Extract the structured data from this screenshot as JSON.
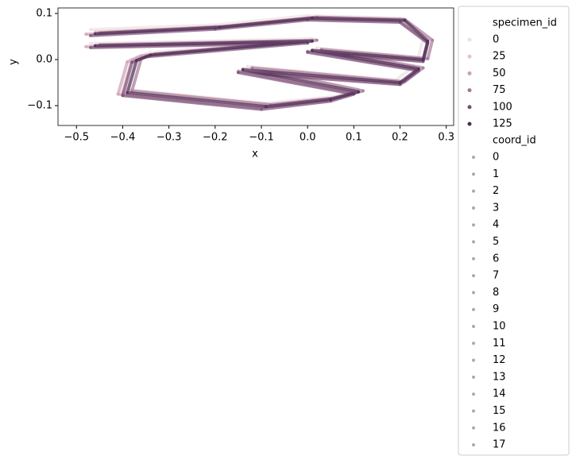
{
  "chart_data": {
    "type": "line",
    "x_label": "x",
    "y_label": "y",
    "xlim": [
      -0.54,
      0.316
    ],
    "ylim": [
      -0.143,
      0.112
    ],
    "xticks": [
      {
        "value": -0.5,
        "label": "−0.5"
      },
      {
        "value": -0.4,
        "label": "−0.4"
      },
      {
        "value": -0.3,
        "label": "−0.3"
      },
      {
        "value": -0.2,
        "label": "−0.2"
      },
      {
        "value": -0.1,
        "label": "−0.1"
      },
      {
        "value": 0,
        "label": "0.0"
      },
      {
        "value": 0.1,
        "label": "0.1"
      },
      {
        "value": 0.2,
        "label": "0.2"
      },
      {
        "value": 0.3,
        "label": "0.3"
      }
    ],
    "yticks": [
      {
        "value": -0.1,
        "label": "−0.1"
      },
      {
        "value": 0,
        "label": "0.0"
      },
      {
        "value": 0.1,
        "label": "0.1"
      }
    ],
    "hue_title": "specimen_id",
    "style_title": "coord_id",
    "style_levels": [
      "0",
      "1",
      "2",
      "3",
      "4",
      "5",
      "6",
      "7",
      "8",
      "9",
      "10",
      "11",
      "12",
      "13",
      "14",
      "15",
      "16",
      "17"
    ],
    "series": [
      {
        "name": "0",
        "color": "#f0dfe3",
        "x": [
          -0.47,
          -0.2,
          0.0,
          0.2,
          0.25,
          0.24,
          0.02,
          0.23,
          0.19,
          -0.13,
          0.11,
          0.06,
          -0.09,
          -0.39,
          -0.37,
          -0.34,
          0.01,
          -0.47
        ],
        "y": [
          0.065,
          0.075,
          0.095,
          0.09,
          0.045,
          0.005,
          0.025,
          -0.015,
          -0.045,
          -0.015,
          -0.065,
          -0.08,
          -0.095,
          -0.065,
          0.005,
          0.015,
          0.045,
          0.035
        ]
      },
      {
        "name": "25",
        "color": "#e5c3cd",
        "x": [
          -0.46,
          -0.19,
          0.01,
          0.21,
          0.26,
          0.25,
          0.01,
          0.24,
          0.2,
          -0.14,
          0.1,
          0.05,
          -0.1,
          -0.4,
          -0.38,
          -0.35,
          0.0,
          -0.46
        ],
        "y": [
          0.06,
          0.07,
          0.09,
          0.085,
          0.04,
          0.0,
          0.02,
          -0.02,
          -0.05,
          -0.02,
          -0.07,
          -0.085,
          -0.1,
          -0.07,
          0.0,
          0.01,
          0.04,
          0.03
        ]
      },
      {
        "name": "50",
        "color": "#cfa0b4",
        "x": [
          -0.48,
          -0.21,
          -0.01,
          0.2,
          0.26,
          0.25,
          0.0,
          0.24,
          0.2,
          -0.15,
          0.1,
          0.04,
          -0.11,
          -0.41,
          -0.39,
          -0.36,
          -0.01,
          -0.48
        ],
        "y": [
          0.055,
          0.068,
          0.088,
          0.083,
          0.038,
          -0.003,
          0.018,
          -0.023,
          -0.053,
          -0.025,
          -0.073,
          -0.09,
          -0.105,
          -0.075,
          -0.005,
          0.008,
          0.038,
          0.028
        ]
      },
      {
        "name": "75",
        "color": "#a87896",
        "x": [
          -0.45,
          -0.18,
          0.02,
          0.21,
          0.27,
          0.26,
          0.03,
          0.25,
          0.21,
          -0.12,
          0.12,
          0.06,
          -0.08,
          -0.38,
          -0.36,
          -0.33,
          0.02,
          -0.45
        ],
        "y": [
          0.058,
          0.072,
          0.092,
          0.087,
          0.042,
          0.002,
          0.022,
          -0.018,
          -0.048,
          -0.018,
          -0.068,
          -0.083,
          -0.098,
          -0.068,
          0.002,
          0.012,
          0.042,
          0.032
        ]
      },
      {
        "name": "100",
        "color": "#7b4f77",
        "x": [
          -0.47,
          -0.2,
          0.0,
          0.2,
          0.26,
          0.25,
          0.0,
          0.24,
          0.2,
          -0.15,
          0.1,
          0.05,
          -0.1,
          -0.4,
          -0.38,
          -0.35,
          0.0,
          -0.47
        ],
        "y": [
          0.052,
          0.066,
          0.086,
          0.081,
          0.036,
          -0.004,
          0.016,
          -0.024,
          -0.054,
          -0.028,
          -0.075,
          -0.09,
          -0.108,
          -0.078,
          -0.006,
          0.006,
          0.036,
          0.026
        ]
      },
      {
        "name": "125",
        "color": "#4b2d55",
        "x": [
          -0.46,
          -0.19,
          0.01,
          0.21,
          0.26,
          0.25,
          0.01,
          0.24,
          0.2,
          -0.14,
          0.11,
          0.05,
          -0.09,
          -0.39,
          -0.37,
          -0.34,
          0.01,
          -0.46
        ],
        "y": [
          0.056,
          0.07,
          0.09,
          0.085,
          0.04,
          0.0,
          0.02,
          -0.02,
          -0.05,
          -0.022,
          -0.07,
          -0.086,
          -0.102,
          -0.072,
          -0.002,
          0.01,
          0.04,
          0.03
        ]
      }
    ]
  }
}
